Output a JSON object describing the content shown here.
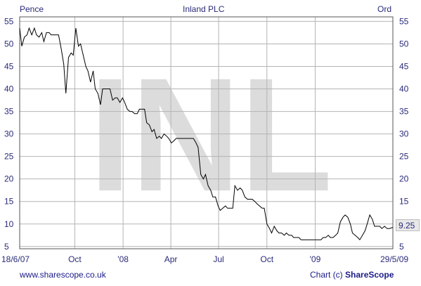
{
  "header": {
    "left_unit": "Pence",
    "title": "Inland PLC",
    "right_unit": "Ord"
  },
  "watermark": "INL",
  "last_price_label": "9.25",
  "footer": {
    "site": "www.sharescope.co.uk",
    "credit_prefix": "Chart (c) ",
    "credit_brand": "ShareScope"
  },
  "colors": {
    "axis_text": "#2a2a7a",
    "grid": "#b4b4b4",
    "line": "#000000",
    "watermark": "#dcdcdc"
  },
  "chart_data": {
    "type": "line",
    "title": "Inland PLC",
    "ylabel": "Pence",
    "ylim": [
      4.5,
      56
    ],
    "yticks": [
      5,
      10,
      15,
      20,
      25,
      30,
      35,
      40,
      45,
      50,
      55
    ],
    "x_tick_labels": [
      "18/6/07",
      "Oct",
      "'08",
      "Apr",
      "Jul",
      "Oct",
      "'09",
      "29/5/09"
    ],
    "grid": true,
    "last_value": 9.25,
    "x_range": [
      "2007-06-18",
      "2009-05-29"
    ],
    "series": [
      {
        "values": [
          [
            "2007-06-18",
            53.5
          ],
          [
            "2007-06-22",
            49.5
          ],
          [
            "2007-06-27",
            51.5
          ],
          [
            "2007-07-02",
            52.0
          ],
          [
            "2007-07-06",
            53.5
          ],
          [
            "2007-07-11",
            52.0
          ],
          [
            "2007-07-16",
            53.5
          ],
          [
            "2007-07-20",
            52.0
          ],
          [
            "2007-07-25",
            51.5
          ],
          [
            "2007-07-30",
            52.5
          ],
          [
            "2007-08-03",
            50.5
          ],
          [
            "2007-08-08",
            52.5
          ],
          [
            "2007-08-13",
            52.5
          ],
          [
            "2007-08-17",
            52.0
          ],
          [
            "2007-08-22",
            52.0
          ],
          [
            "2007-08-27",
            52.0
          ],
          [
            "2007-08-31",
            52.0
          ],
          [
            "2007-09-05",
            49.0
          ],
          [
            "2007-09-10",
            45.5
          ],
          [
            "2007-09-14",
            39.0
          ],
          [
            "2007-09-19",
            47.0
          ],
          [
            "2007-09-24",
            48.0
          ],
          [
            "2007-09-28",
            47.5
          ],
          [
            "2007-10-03",
            53.5
          ],
          [
            "2007-10-08",
            49.5
          ],
          [
            "2007-10-12",
            50.0
          ],
          [
            "2007-10-17",
            47.5
          ],
          [
            "2007-10-22",
            45.0
          ],
          [
            "2007-10-26",
            44.0
          ],
          [
            "2007-10-31",
            41.5
          ],
          [
            "2007-11-05",
            44.0
          ],
          [
            "2007-11-09",
            40.0
          ],
          [
            "2007-11-14",
            39.0
          ],
          [
            "2007-11-19",
            36.5
          ],
          [
            "2007-11-23",
            40.0
          ],
          [
            "2007-11-28",
            40.0
          ],
          [
            "2007-12-03",
            40.0
          ],
          [
            "2007-12-07",
            40.0
          ],
          [
            "2007-12-12",
            37.5
          ],
          [
            "2007-12-17",
            38.0
          ],
          [
            "2007-12-21",
            38.0
          ],
          [
            "2007-12-26",
            37.0
          ],
          [
            "2007-12-31",
            38.0
          ],
          [
            "2008-01-04",
            37.0
          ],
          [
            "2008-01-09",
            35.5
          ],
          [
            "2008-01-14",
            35.0
          ],
          [
            "2008-01-18",
            35.0
          ],
          [
            "2008-01-23",
            34.5
          ],
          [
            "2008-01-28",
            34.5
          ],
          [
            "2008-02-01",
            35.5
          ],
          [
            "2008-02-06",
            35.5
          ],
          [
            "2008-02-11",
            35.5
          ],
          [
            "2008-02-15",
            32.5
          ],
          [
            "2008-02-20",
            32.0
          ],
          [
            "2008-02-25",
            30.5
          ],
          [
            "2008-02-29",
            31.0
          ],
          [
            "2008-03-05",
            29.0
          ],
          [
            "2008-03-10",
            29.5
          ],
          [
            "2008-03-14",
            29.0
          ],
          [
            "2008-03-19",
            30.0
          ],
          [
            "2008-03-24",
            29.5
          ],
          [
            "2008-03-28",
            29.0
          ],
          [
            "2008-04-02",
            28.0
          ],
          [
            "2008-04-07",
            28.5
          ],
          [
            "2008-04-11",
            29.0
          ],
          [
            "2008-04-16",
            29.0
          ],
          [
            "2008-04-21",
            29.0
          ],
          [
            "2008-04-25",
            29.0
          ],
          [
            "2008-04-30",
            29.0
          ],
          [
            "2008-05-05",
            29.0
          ],
          [
            "2008-05-09",
            29.0
          ],
          [
            "2008-05-14",
            29.0
          ],
          [
            "2008-05-19",
            28.0
          ],
          [
            "2008-05-23",
            27.0
          ],
          [
            "2008-05-28",
            21.0
          ],
          [
            "2008-06-02",
            20.0
          ],
          [
            "2008-06-06",
            21.0
          ],
          [
            "2008-06-11",
            18.5
          ],
          [
            "2008-06-16",
            17.5
          ],
          [
            "2008-06-20",
            16.0
          ],
          [
            "2008-06-25",
            16.0
          ],
          [
            "2008-06-30",
            14.0
          ],
          [
            "2008-07-04",
            13.0
          ],
          [
            "2008-07-09",
            13.5
          ],
          [
            "2008-07-14",
            14.0
          ],
          [
            "2008-07-18",
            13.5
          ],
          [
            "2008-07-23",
            13.5
          ],
          [
            "2008-07-28",
            13.5
          ],
          [
            "2008-08-01",
            18.5
          ],
          [
            "2008-08-06",
            17.5
          ],
          [
            "2008-08-11",
            18.0
          ],
          [
            "2008-08-15",
            17.5
          ],
          [
            "2008-08-20",
            16.0
          ],
          [
            "2008-08-25",
            15.5
          ],
          [
            "2008-08-29",
            15.5
          ],
          [
            "2008-09-03",
            15.5
          ],
          [
            "2008-09-08",
            15.0
          ],
          [
            "2008-09-12",
            14.5
          ],
          [
            "2008-09-17",
            14.0
          ],
          [
            "2008-09-22",
            13.5
          ],
          [
            "2008-09-26",
            13.5
          ],
          [
            "2008-10-01",
            10.0
          ],
          [
            "2008-10-06",
            9.0
          ],
          [
            "2008-10-10",
            8.0
          ],
          [
            "2008-10-15",
            9.5
          ],
          [
            "2008-10-20",
            8.5
          ],
          [
            "2008-10-24",
            8.0
          ],
          [
            "2008-10-29",
            8.0
          ],
          [
            "2008-11-03",
            7.5
          ],
          [
            "2008-11-07",
            8.0
          ],
          [
            "2008-11-12",
            7.5
          ],
          [
            "2008-11-17",
            7.5
          ],
          [
            "2008-11-21",
            7.0
          ],
          [
            "2008-11-26",
            7.0
          ],
          [
            "2008-12-01",
            7.0
          ],
          [
            "2008-12-05",
            6.5
          ],
          [
            "2008-12-10",
            6.5
          ],
          [
            "2008-12-15",
            6.5
          ],
          [
            "2008-12-19",
            6.5
          ],
          [
            "2008-12-24",
            6.5
          ],
          [
            "2008-12-29",
            6.5
          ],
          [
            "2009-01-02",
            6.5
          ],
          [
            "2009-01-07",
            6.5
          ],
          [
            "2009-01-12",
            6.5
          ],
          [
            "2009-01-16",
            7.0
          ],
          [
            "2009-01-21",
            7.0
          ],
          [
            "2009-01-26",
            7.5
          ],
          [
            "2009-01-30",
            7.0
          ],
          [
            "2009-02-04",
            7.0
          ],
          [
            "2009-02-09",
            7.5
          ],
          [
            "2009-02-13",
            8.0
          ],
          [
            "2009-02-18",
            10.5
          ],
          [
            "2009-02-23",
            11.5
          ],
          [
            "2009-02-27",
            12.0
          ],
          [
            "2009-03-04",
            11.5
          ],
          [
            "2009-03-09",
            10.0
          ],
          [
            "2009-03-13",
            8.0
          ],
          [
            "2009-03-18",
            7.5
          ],
          [
            "2009-03-23",
            7.0
          ],
          [
            "2009-03-27",
            6.5
          ],
          [
            "2009-04-01",
            7.5
          ],
          [
            "2009-04-06",
            8.5
          ],
          [
            "2009-04-10",
            10.0
          ],
          [
            "2009-04-15",
            12.0
          ],
          [
            "2009-04-20",
            11.0
          ],
          [
            "2009-04-24",
            9.5
          ],
          [
            "2009-04-29",
            9.5
          ],
          [
            "2009-05-04",
            9.5
          ],
          [
            "2009-05-08",
            9.0
          ],
          [
            "2009-05-13",
            9.5
          ],
          [
            "2009-05-18",
            9.0
          ],
          [
            "2009-05-22",
            9.0
          ],
          [
            "2009-05-29",
            9.25
          ]
        ]
      }
    ]
  }
}
